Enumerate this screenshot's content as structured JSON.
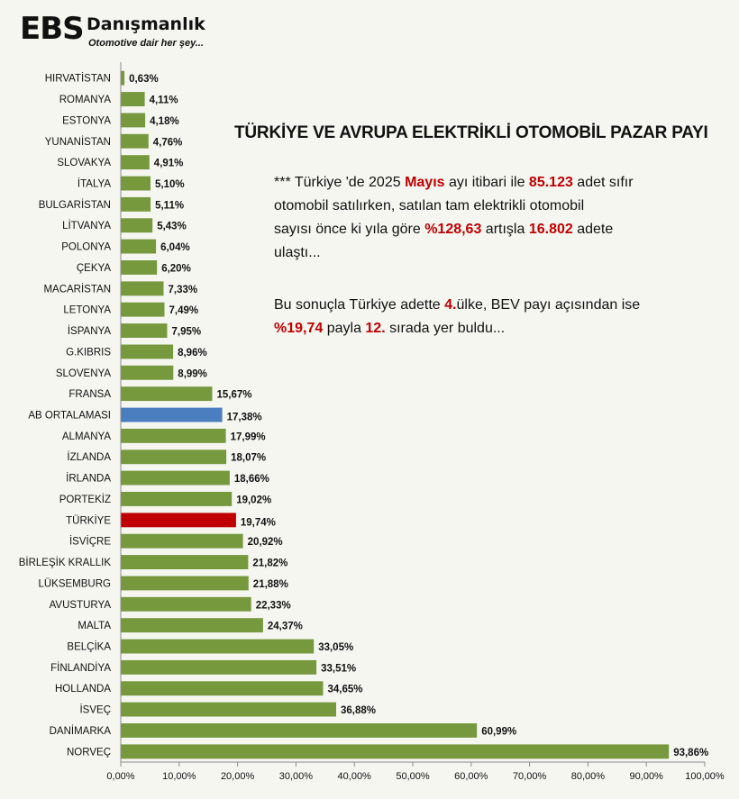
{
  "logo": {
    "brand": "EBS",
    "name": "Danışmanlık",
    "slogan": "Otomotive dair her şey..."
  },
  "colors": {
    "bar": "#77993e",
    "average": "#4a7ebf",
    "turkey": "#c00000",
    "average_label": "#1f4e8c",
    "turkey_label": "#c00000"
  },
  "chart_data": {
    "type": "bar",
    "orientation": "horizontal",
    "title": "TÜRKİYE VE AVRUPA ELEKTRİKLİ OTOMOBİL PAZAR PAYI",
    "categories": [
      "HIRVATİSTAN",
      "ROMANYA",
      "ESTONYA",
      "YUNANİSTAN",
      "SLOVAKYA",
      "İTALYA",
      "BULGARİSTAN",
      "LİTVANYA",
      "POLONYA",
      "ÇEKYA",
      "MACARİSTAN",
      "LETONYA",
      "İSPANYA",
      "G.KIBRIS",
      "SLOVENYA",
      "FRANSA",
      "AB ORTALAMASI",
      "ALMANYA",
      "İZLANDA",
      "İRLANDA",
      "PORTEKİZ",
      "TÜRKİYE",
      "İSVİÇRE",
      "BİRLEŞİK KRALLIK",
      "LÜKSEMBURG",
      "AVUSTURYA",
      "MALTA",
      "BELÇİKA",
      "FİNLANDİYA",
      "HOLLANDA",
      "İSVEÇ",
      "DANİMARKA",
      "NORVEÇ"
    ],
    "values": [
      0.63,
      4.11,
      4.18,
      4.76,
      4.91,
      5.1,
      5.11,
      5.43,
      6.04,
      6.2,
      7.33,
      7.49,
      7.95,
      8.96,
      8.99,
      15.67,
      17.38,
      17.99,
      18.07,
      18.66,
      19.02,
      19.74,
      20.92,
      21.82,
      21.88,
      22.33,
      24.37,
      33.05,
      33.51,
      34.65,
      36.88,
      60.99,
      93.86
    ],
    "value_labels": [
      "0,63%",
      "4,11%",
      "4,18%",
      "4,76%",
      "4,91%",
      "5,10%",
      "5,11%",
      "5,43%",
      "6,04%",
      "6,20%",
      "7,33%",
      "7,49%",
      "7,95%",
      "8,96%",
      "8,99%",
      "15,67%",
      "17,38%",
      "17,99%",
      "18,07%",
      "18,66%",
      "19,02%",
      "19,74%",
      "20,92%",
      "21,82%",
      "21,88%",
      "22,33%",
      "24,37%",
      "33,05%",
      "33,51%",
      "34,65%",
      "36,88%",
      "60,99%",
      "93,86%"
    ],
    "highlights": {
      "AB ORTALAMASI": "average",
      "TÜRKİYE": "turkey"
    },
    "xlim": [
      0,
      100
    ],
    "ticks": [
      "0,00%",
      "10,00%",
      "20,00%",
      "30,00%",
      "40,00%",
      "50,00%",
      "60,00%",
      "70,00%",
      "80,00%",
      "90,00%",
      "100,00%"
    ],
    "grid": false,
    "legend": "none"
  },
  "note": {
    "p1_l1_a": "*** Türkiye 'de 2025 ",
    "p1_l1_b": "Mayıs",
    "p1_l1_c": " ayı itibari ile ",
    "p1_l1_d": "85.123",
    "p1_l1_e": " adet sıfır",
    "p1_l2": "otomobil satılırken, satılan tam elektrikli otomobil",
    "p1_l3_a": "sayısı önce ki yıla göre ",
    "p1_l3_b": "%128,63",
    "p1_l3_c": " artışla ",
    "p1_l3_d": "16.802",
    "p1_l3_e": " adete",
    "p1_l4": "ulaştı...",
    "p2_l1_a": "Bu sonuçla Türkiye adette ",
    "p2_l1_b": "4.",
    "p2_l1_c": "ülke, BEV payı açısından ise",
    "p2_l2_a": "%19,74",
    "p2_l2_b": " payla ",
    "p2_l2_c": "12.",
    "p2_l2_d": " sırada yer buldu..."
  }
}
